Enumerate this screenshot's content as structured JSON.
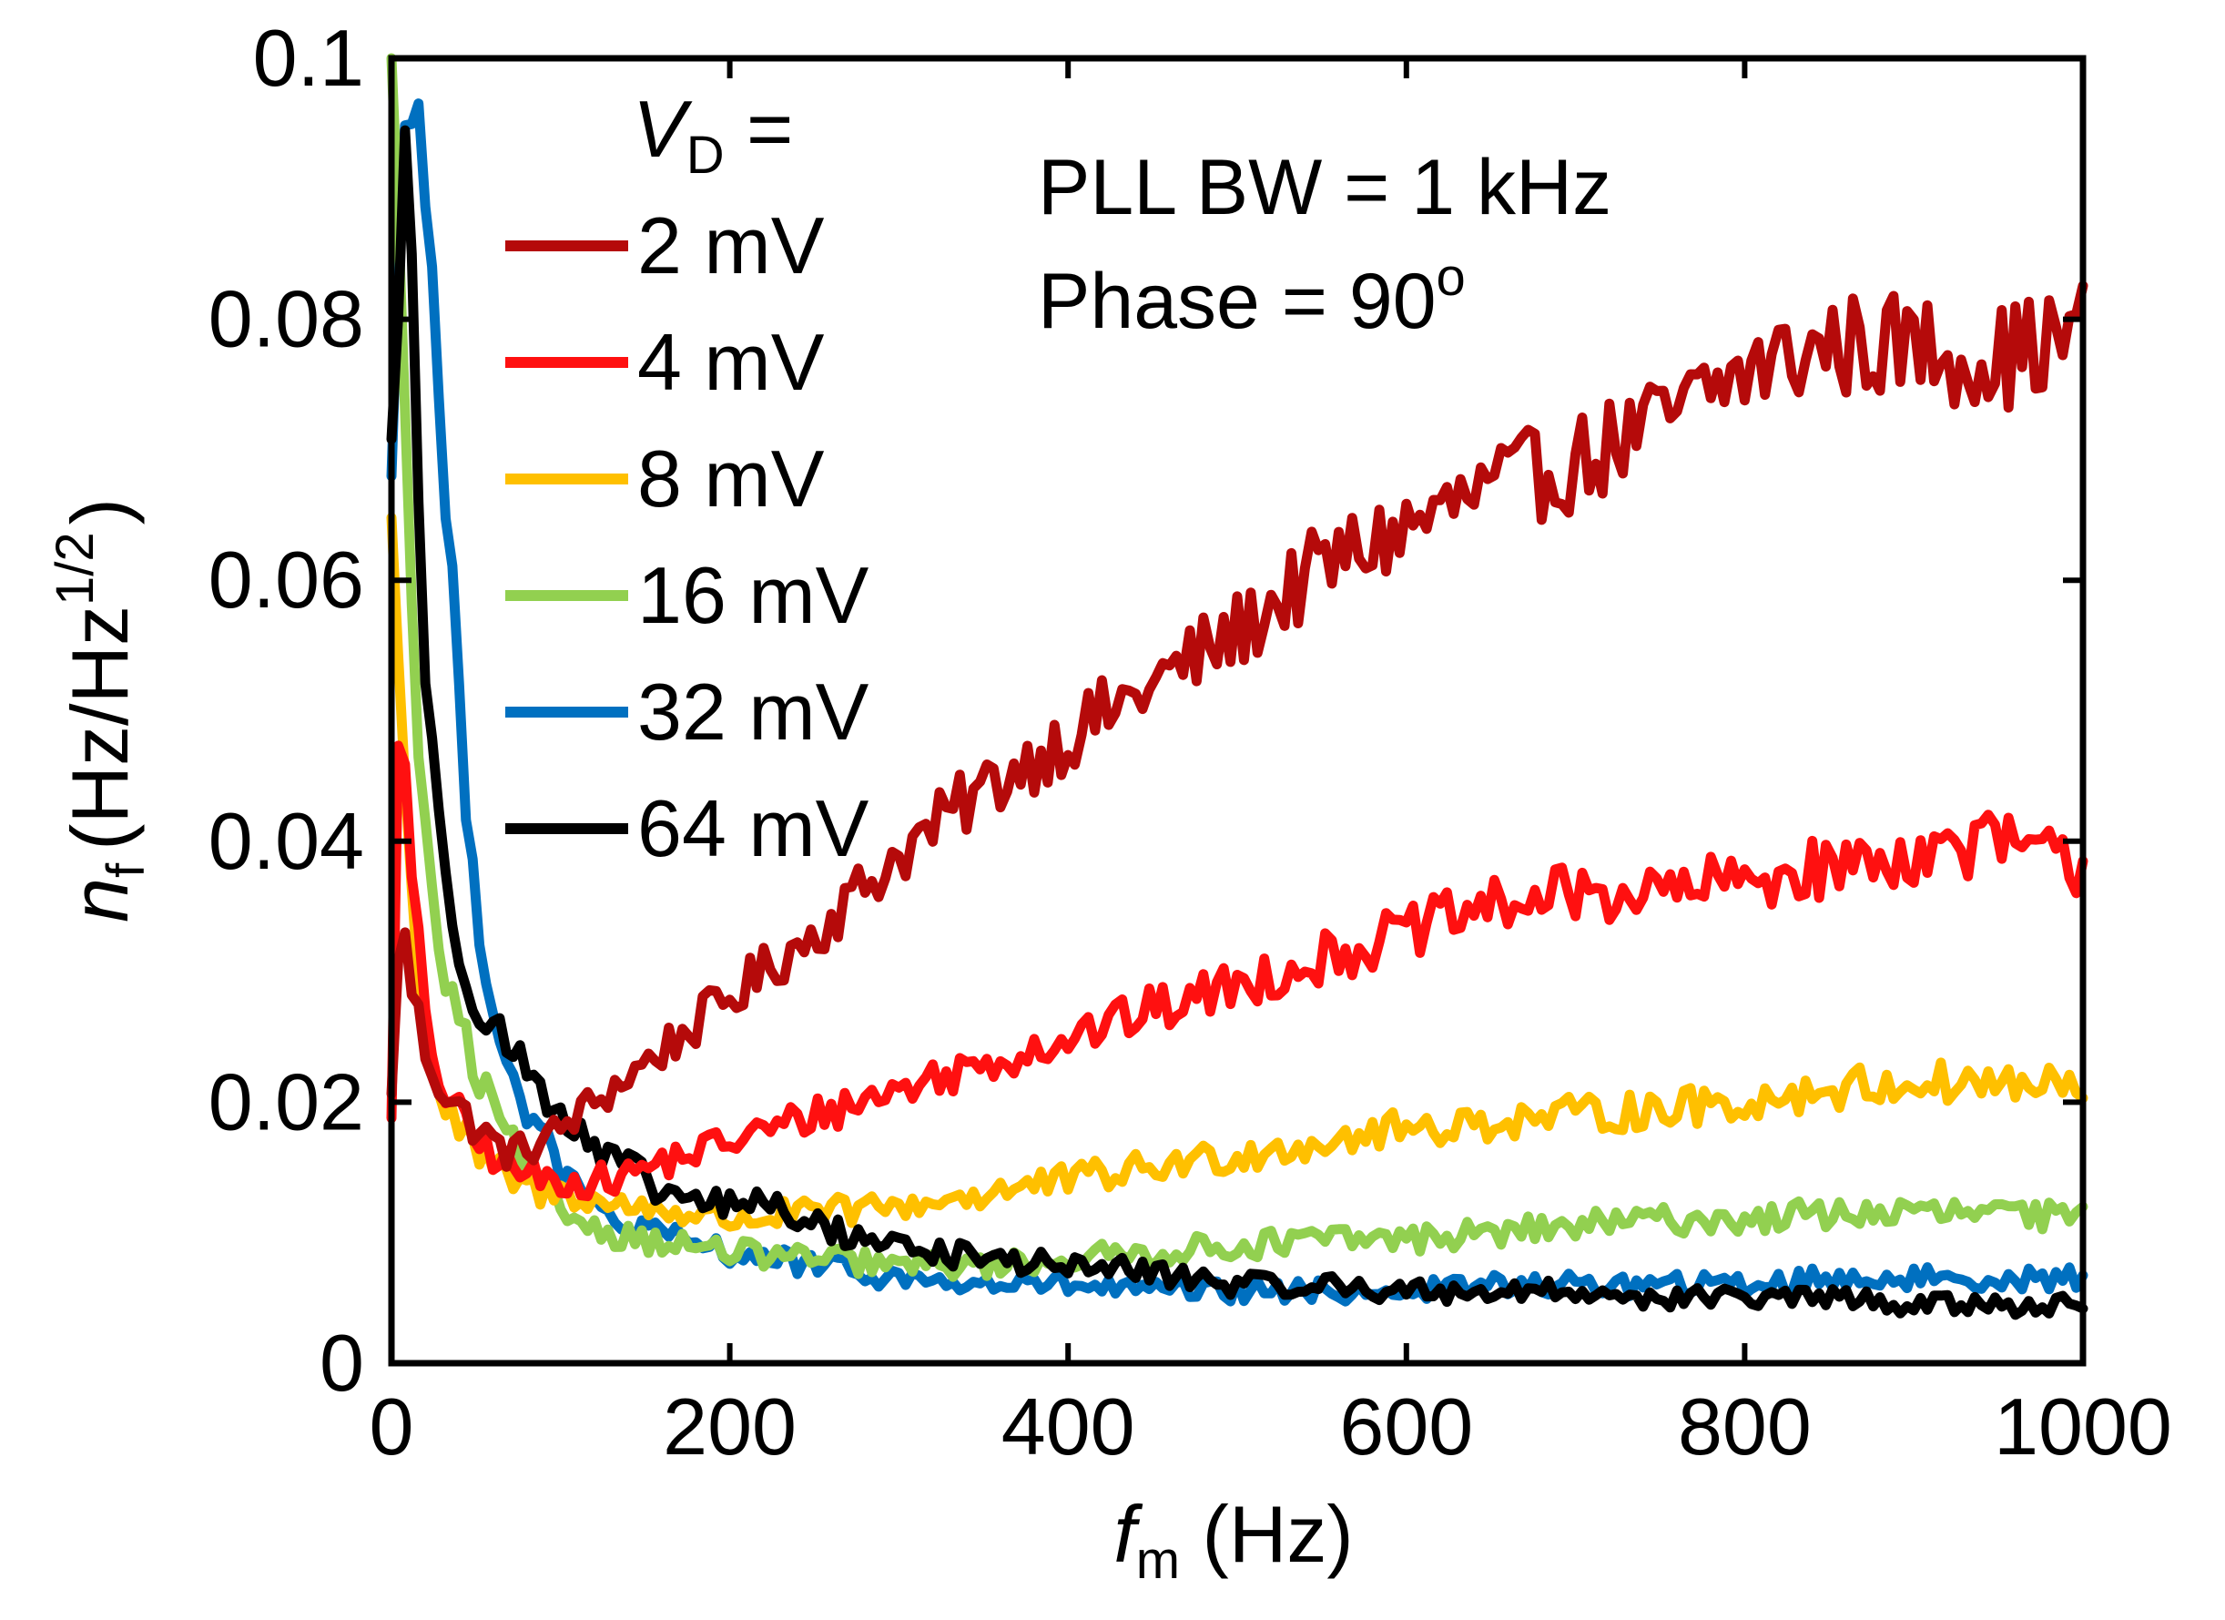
{
  "chart_data": {
    "type": "line",
    "xlabel": {
      "symbol": "f",
      "subscript": "m",
      "unit": " (Hz)"
    },
    "ylabel": {
      "symbol": "n",
      "subscript": "f",
      "unit_open": "(Hz/Hz",
      "superscript": "1/2",
      "unit_close": ")"
    },
    "xlim": [
      0,
      1000
    ],
    "ylim": [
      0,
      0.1
    ],
    "x_ticks": [
      0,
      200,
      400,
      600,
      800,
      1000
    ],
    "x_tick_labels": [
      "0",
      "200",
      "400",
      "600",
      "800",
      "1000"
    ],
    "y_ticks": [
      0,
      0.02,
      0.04,
      0.06,
      0.08,
      0.1
    ],
    "y_tick_labels": [
      "0",
      "0.02",
      "0.04",
      "0.06",
      "0.08",
      "0.1"
    ],
    "legend": {
      "title_symbol": "V",
      "title_subscript": "D",
      "title_suffix": " =",
      "position": "top-left"
    },
    "annotations": [
      {
        "text": "PLL BW = 1 kHz"
      },
      {
        "text": "Phase = 90",
        "superscript": "o"
      }
    ],
    "series": [
      {
        "name": "2 mV",
        "color": "#b50a0a",
        "x": [
          0,
          5,
          10,
          20,
          30,
          50,
          70,
          90,
          110,
          130,
          150,
          200,
          250,
          300,
          350,
          400,
          450,
          500,
          550,
          600,
          650,
          700,
          750,
          800,
          850,
          900,
          950,
          1000
        ],
        "y": [
          0.02,
          0.035,
          0.03,
          0.024,
          0.021,
          0.018,
          0.016,
          0.017,
          0.019,
          0.021,
          0.023,
          0.028,
          0.033,
          0.039,
          0.044,
          0.048,
          0.052,
          0.056,
          0.061,
          0.064,
          0.067,
          0.069,
          0.072,
          0.076,
          0.078,
          0.078,
          0.077,
          0.079
        ]
      },
      {
        "name": "4 mV",
        "color": "#ff1010",
        "x": [
          0,
          5,
          10,
          20,
          30,
          50,
          70,
          90,
          110,
          130,
          150,
          200,
          250,
          300,
          350,
          400,
          450,
          500,
          550,
          600,
          650,
          700,
          750,
          800,
          850,
          900,
          950,
          1000
        ],
        "y": [
          0.02,
          0.052,
          0.04,
          0.026,
          0.021,
          0.017,
          0.015,
          0.014,
          0.014,
          0.014,
          0.015,
          0.017,
          0.019,
          0.021,
          0.023,
          0.025,
          0.027,
          0.029,
          0.031,
          0.033,
          0.035,
          0.036,
          0.036,
          0.037,
          0.038,
          0.039,
          0.04,
          0.038
        ]
      },
      {
        "name": "8 mV",
        "color": "#ffc000",
        "x": [
          0,
          5,
          10,
          20,
          30,
          50,
          70,
          90,
          110,
          130,
          150,
          200,
          250,
          300,
          350,
          400,
          450,
          500,
          550,
          600,
          650,
          700,
          750,
          800,
          850,
          900,
          950,
          1000
        ],
        "y": [
          0.065,
          0.052,
          0.038,
          0.026,
          0.02,
          0.016,
          0.014,
          0.013,
          0.013,
          0.012,
          0.012,
          0.011,
          0.0115,
          0.012,
          0.013,
          0.014,
          0.015,
          0.016,
          0.017,
          0.018,
          0.0185,
          0.019,
          0.0195,
          0.02,
          0.021,
          0.0215,
          0.0215,
          0.021
        ]
      },
      {
        "name": "16 mV",
        "color": "#92d050",
        "x": [
          0,
          5,
          10,
          20,
          30,
          50,
          70,
          90,
          110,
          130,
          150,
          200,
          250,
          300,
          350,
          400,
          450,
          500,
          550,
          600,
          650,
          700,
          750,
          800,
          850,
          900,
          950,
          1000
        ],
        "y": [
          0.1,
          0.09,
          0.06,
          0.04,
          0.03,
          0.022,
          0.017,
          0.013,
          0.011,
          0.01,
          0.0095,
          0.0085,
          0.008,
          0.0075,
          0.0075,
          0.008,
          0.0085,
          0.009,
          0.0095,
          0.0095,
          0.01,
          0.0105,
          0.011,
          0.011,
          0.0115,
          0.0115,
          0.0115,
          0.011
        ]
      },
      {
        "name": "32 mV",
        "color": "#0070c0",
        "x": [
          0,
          10,
          15,
          20,
          30,
          40,
          50,
          60,
          70,
          90,
          110,
          130,
          150,
          200,
          250,
          300,
          350,
          400,
          450,
          500,
          550,
          600,
          650,
          700,
          750,
          800,
          850,
          900,
          950,
          1000
        ],
        "y": [
          0.07,
          0.1,
          0.1,
          0.09,
          0.07,
          0.05,
          0.035,
          0.028,
          0.022,
          0.017,
          0.013,
          0.011,
          0.01,
          0.0085,
          0.0075,
          0.0065,
          0.006,
          0.006,
          0.0055,
          0.0055,
          0.0055,
          0.0055,
          0.006,
          0.006,
          0.006,
          0.006,
          0.0065,
          0.0065,
          0.0065,
          0.0065
        ]
      },
      {
        "name": "64 mV",
        "color": "#000000",
        "x": [
          0,
          10,
          15,
          20,
          30,
          40,
          50,
          60,
          70,
          85,
          100,
          120,
          140,
          160,
          200,
          220,
          250,
          300,
          350,
          400,
          450,
          500,
          550,
          600,
          650,
          700,
          750,
          800,
          850,
          900,
          950,
          1000
        ],
        "y": [
          0.07,
          0.1,
          0.07,
          0.05,
          0.04,
          0.032,
          0.028,
          0.026,
          0.024,
          0.022,
          0.019,
          0.016,
          0.015,
          0.013,
          0.012,
          0.0125,
          0.0105,
          0.009,
          0.008,
          0.0075,
          0.007,
          0.006,
          0.006,
          0.0055,
          0.0055,
          0.0055,
          0.005,
          0.005,
          0.005,
          0.0045,
          0.0045,
          0.0045
        ]
      }
    ]
  }
}
